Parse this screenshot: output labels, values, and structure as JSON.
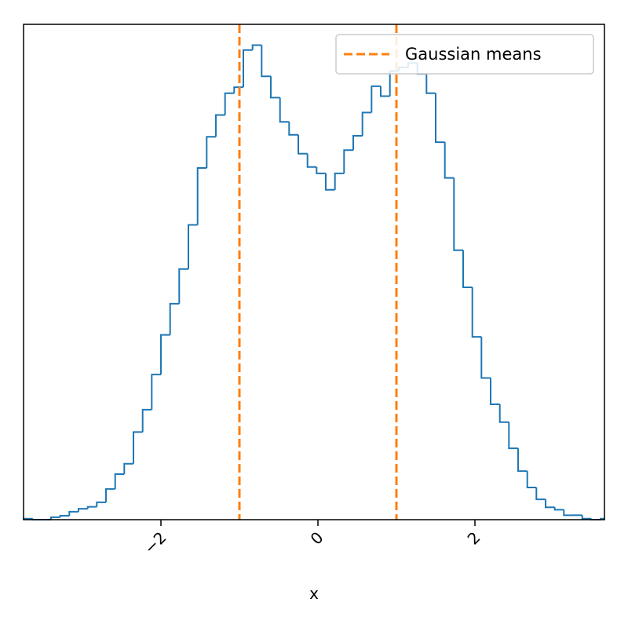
{
  "chart_data": {
    "type": "histogram",
    "title": "",
    "xlabel": "x",
    "ylabel": "",
    "xlim": [
      -3.75,
      3.65
    ],
    "ylim": [
      0,
      1
    ],
    "x_ticks": [
      -2,
      0,
      2
    ],
    "x_tick_labels": [
      "−2",
      "0",
      "2"
    ],
    "x_tick_rotation": 45,
    "y_ticks_shown": false,
    "grid": false,
    "bin_edges": [
      -3.75,
      -3.633,
      -3.517,
      -3.4,
      -3.283,
      -3.167,
      -3.05,
      -2.933,
      -2.817,
      -2.7,
      -2.583,
      -2.467,
      -2.35,
      -2.233,
      -2.117,
      -2.0,
      -1.883,
      -1.767,
      -1.65,
      -1.533,
      -1.417,
      -1.3,
      -1.183,
      -1.067,
      -0.95,
      -0.833,
      -0.717,
      -0.6,
      -0.483,
      -0.367,
      -0.25,
      -0.133,
      -0.017,
      0.1,
      0.217,
      0.333,
      0.45,
      0.567,
      0.683,
      0.8,
      0.917,
      1.033,
      1.15,
      1.267,
      1.383,
      1.5,
      1.617,
      1.733,
      1.85,
      1.967,
      2.083,
      2.2,
      2.317,
      2.433,
      2.55,
      2.667,
      2.783,
      2.9,
      3.017,
      3.133,
      3.25,
      3.367,
      3.483,
      3.6,
      3.65
    ],
    "counts": [
      0.002,
      0.0,
      0.0,
      0.005,
      0.008,
      0.016,
      0.022,
      0.026,
      0.035,
      0.062,
      0.092,
      0.113,
      0.177,
      0.222,
      0.293,
      0.373,
      0.436,
      0.506,
      0.595,
      0.71,
      0.773,
      0.817,
      0.861,
      0.873,
      0.948,
      0.958,
      0.895,
      0.852,
      0.803,
      0.777,
      0.739,
      0.712,
      0.699,
      0.666,
      0.699,
      0.746,
      0.775,
      0.822,
      0.875,
      0.855,
      0.906,
      0.913,
      0.922,
      0.9,
      0.861,
      0.762,
      0.69,
      0.544,
      0.469,
      0.369,
      0.286,
      0.233,
      0.197,
      0.144,
      0.098,
      0.065,
      0.041,
      0.025,
      0.02,
      0.009,
      0.009,
      0.002,
      0.0,
      0.002
    ],
    "series": [
      {
        "name": "",
        "kind": "step-histogram",
        "color": "#1f77b4"
      },
      {
        "name": "Gaussian means",
        "kind": "vertical-lines",
        "x": [
          -1,
          1
        ],
        "color": "#ff7f0e",
        "style": "dashed"
      }
    ],
    "legend": {
      "placement": "top-right",
      "entries": [
        "Gaussian means"
      ]
    }
  }
}
